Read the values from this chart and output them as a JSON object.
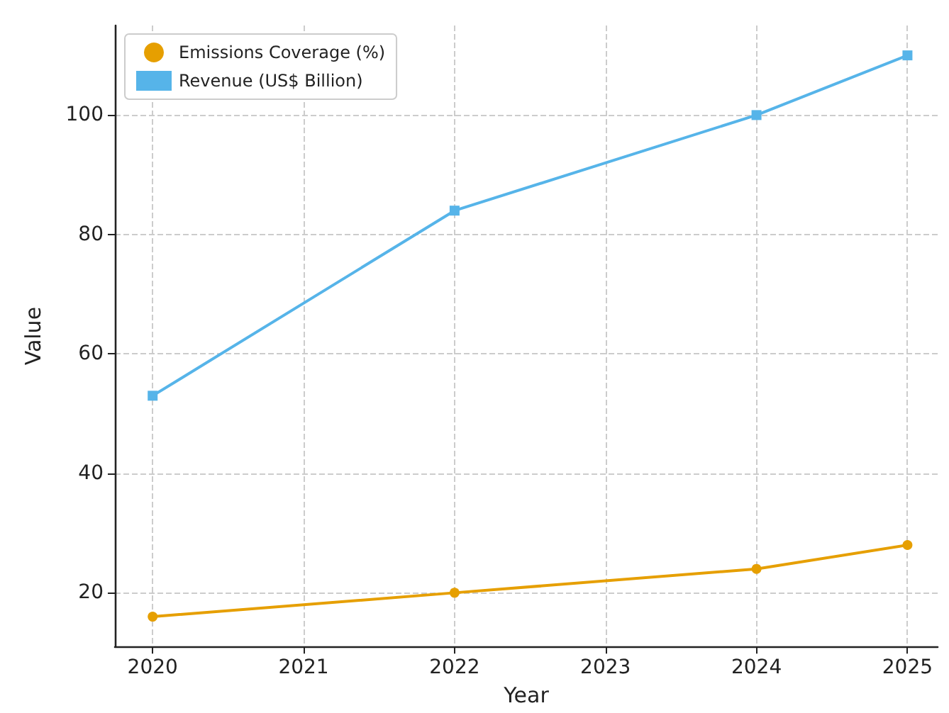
{
  "chart_data": {
    "type": "line",
    "xlabel": "Year",
    "ylabel": "Value",
    "xlim": [
      2019.75,
      2025.2
    ],
    "xticks": [
      2020,
      2021,
      2022,
      2023,
      2024,
      2025
    ],
    "ylim": [
      11,
      115
    ],
    "yticks": [
      20,
      40,
      60,
      80,
      100
    ],
    "grid": true,
    "legend": "top left",
    "series": [
      {
        "name": "Emissions Coverage (%)",
        "color": "#e69f00",
        "marker": "circle",
        "x": [
          2020,
          2022,
          2024,
          2025
        ],
        "values": [
          16,
          20,
          24,
          28
        ]
      },
      {
        "name": "Revenue (US$ Billion)",
        "color": "#56b4e9",
        "marker": "square",
        "x": [
          2020,
          2022,
          2024,
          2025
        ],
        "values": [
          53,
          84,
          100,
          110
        ]
      }
    ]
  }
}
